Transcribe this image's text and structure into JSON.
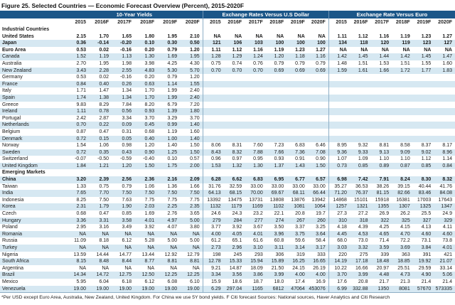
{
  "title": "Figure 25. Selected Countries — Economic Forecast Overview (Percent), 2015-2020F",
  "colors": {
    "header_bar": "#1b5688",
    "stripe": "#d6e8f2",
    "separator": "#8fafc6"
  },
  "groups": [
    {
      "label": "10-Year Yields"
    },
    {
      "label": "Exchange Rates Versus U.S Dollar"
    },
    {
      "label": "Exchange Rate Versus Euro"
    }
  ],
  "years": [
    "2015",
    "2016F",
    "2017F",
    "2018F",
    "2019F",
    "2020F"
  ],
  "sections": [
    {
      "label": "Industrial Countries",
      "rows": [
        {
          "country": "United States",
          "bold": true,
          "yields": [
            "2.15",
            "1.70",
            "1.65",
            "1.80",
            "1.95",
            "2.10"
          ],
          "usd": [
            "NA",
            "NA",
            "NA",
            "NA",
            "NA",
            "NA"
          ],
          "euro": [
            "1.11",
            "1.12",
            "1.16",
            "1.19",
            "1.23",
            "1.27"
          ]
        },
        {
          "country": "Japan",
          "bold": true,
          "yields": [
            "0.36",
            "-0.14",
            "-0.20",
            "0.10",
            "0.30",
            "0.50"
          ],
          "usd": [
            "121",
            "106",
            "103",
            "100",
            "100",
            "100"
          ],
          "euro": [
            "134",
            "118",
            "120",
            "119",
            "123",
            "127"
          ]
        },
        {
          "country": "Euro Area",
          "bold": true,
          "yields": [
            "0.53",
            "0.02",
            "-0.16",
            "0.20",
            "0.79",
            "1.20"
          ],
          "usd": [
            "1.11",
            "1.12",
            "1.16",
            "1.19",
            "1.23",
            "1.27"
          ],
          "euro": [
            "NA",
            "NA",
            "NA",
            "NA",
            "NA",
            "NA"
          ]
        },
        {
          "country": "Canada",
          "yields": [
            "1.52",
            "1.19",
            "1.13",
            "1.30",
            "1.69",
            "1.95"
          ],
          "usd": [
            "1.28",
            "1.29",
            "1.24",
            "1.20",
            "1.18",
            "1.16"
          ],
          "euro": [
            "1.42",
            "1.45",
            "1.44",
            "1.42",
            "1.45",
            "1.47"
          ]
        },
        {
          "country": "Australia",
          "yields": [
            "2.70",
            "1.95",
            "1.98",
            "3.98",
            "4.25",
            "4.30"
          ],
          "usd": [
            "0.75",
            "0.74",
            "0.76",
            "0.79",
            "0.79",
            "0.79"
          ],
          "euro": [
            "1.48",
            "1.51",
            "1.53",
            "1.51",
            "1.55",
            "1.60"
          ]
        },
        {
          "country": "New Zealand",
          "yields": [
            "3.43",
            "2.28",
            "2.55",
            "4.83",
            "5.30",
            "5.70"
          ],
          "usd": [
            "0.70",
            "0.70",
            "0.70",
            "0.69",
            "0.69",
            "0.69"
          ],
          "euro": [
            "1.59",
            "1.61",
            "1.66",
            "1.72",
            "1.77",
            "1.83"
          ]
        },
        {
          "country": "Germany",
          "yields": [
            "0.53",
            "0.02",
            "-0.16",
            "0.20",
            "0.79",
            "1.20"
          ],
          "usd": [],
          "euro": []
        },
        {
          "country": "France",
          "yields": [
            "0.84",
            "0.40",
            "0.26",
            "0.63",
            "1.14",
            "1.55"
          ],
          "usd": [],
          "euro": []
        },
        {
          "country": "Italy",
          "yields": [
            "1.71",
            "1.47",
            "1.34",
            "1.70",
            "1.99",
            "2.40"
          ],
          "usd": [],
          "euro": []
        },
        {
          "country": "Spain",
          "yields": [
            "1.74",
            "1.38",
            "1.34",
            "1.70",
            "1.99",
            "2.40"
          ],
          "usd": [],
          "euro": []
        },
        {
          "country": "Greece",
          "yields": [
            "9.83",
            "8.29",
            "7.84",
            "8.20",
            "6.79",
            "7.20"
          ],
          "usd": [],
          "euro": []
        },
        {
          "country": "Ireland",
          "yields": [
            "1.11",
            "0.78",
            "0.56",
            "0.93",
            "1.39",
            "1.80"
          ],
          "usd": [],
          "euro": []
        },
        {
          "country": "Portugal",
          "yields": [
            "2.42",
            "2.87",
            "3.34",
            "3.70",
            "3.29",
            "3.70"
          ],
          "usd": [],
          "euro": []
        },
        {
          "country": "Netherlands",
          "yields": [
            "0.70",
            "0.22",
            "0.09",
            "0.45",
            "0.99",
            "1.40"
          ],
          "usd": [],
          "euro": []
        },
        {
          "country": "Belgium",
          "yields": [
            "0.87",
            "0.47",
            "0.31",
            "0.68",
            "1.19",
            "1.60"
          ],
          "usd": [],
          "euro": []
        },
        {
          "country": "Denmark",
          "yields": [
            "0.72",
            "0.15",
            "0.05",
            "0.40",
            "1.00",
            "1.40"
          ],
          "usd": [],
          "euro": []
        },
        {
          "country": "Norway",
          "yields": [
            "1.54",
            "1.06",
            "0.98",
            "1.20",
            "1.40",
            "1.50"
          ],
          "usd": [
            "8.06",
            "8.31",
            "7.60",
            "7.23",
            "6.83",
            "6.46"
          ],
          "euro": [
            "8.95",
            "9.32",
            "8.81",
            "8.58",
            "8.37",
            "8.17"
          ]
        },
        {
          "country": "Sweden",
          "yields": [
            "0.72",
            "0.35",
            "0.43",
            "0.90",
            "1.25",
            "1.50"
          ],
          "usd": [
            "8.43",
            "8.32",
            "7.88",
            "7.66",
            "7.36",
            "7.08"
          ],
          "euro": [
            "9.36",
            "9.33",
            "9.13",
            "9.09",
            "9.02",
            "8.96"
          ]
        },
        {
          "country": "Switzerland",
          "yields": [
            "-0.07",
            "-0.50",
            "-0.59",
            "-0.40",
            "0.10",
            "0.57"
          ],
          "usd": [
            "0.96",
            "0.97",
            "0.95",
            "0.93",
            "0.91",
            "0.90"
          ],
          "euro": [
            "1.07",
            "1.09",
            "1.10",
            "1.10",
            "1.12",
            "1.14"
          ]
        },
        {
          "country": "United Kingdom",
          "yields": [
            "1.84",
            "1.21",
            "1.20",
            "1.50",
            "1.75",
            "2.00"
          ],
          "usd": [
            "1.53",
            "1.32",
            "1.30",
            "1.37",
            "1.43",
            "1.50"
          ],
          "euro": [
            "0.73",
            "0.85",
            "0.89",
            "0.87",
            "0.85",
            "0.84"
          ]
        }
      ]
    },
    {
      "label": "Emerging Markets",
      "rows": [
        {
          "country": "China",
          "bold": true,
          "yields": [
            "3.20",
            "2.39",
            "2.56",
            "2.36",
            "2.16",
            "2.09"
          ],
          "usd": [
            "6.28",
            "6.62",
            "6.83",
            "6.95",
            "6.77",
            "6.57"
          ],
          "euro": [
            "6.98",
            "7.42",
            "7.91",
            "8.24",
            "8.30",
            "8.32"
          ]
        },
        {
          "country": "Taiwan",
          "yields": [
            "1.33",
            "0.75",
            "0.79",
            "1.06",
            "1.36",
            "1.66"
          ],
          "usd": [
            "31.76",
            "32.59",
            "33.00",
            "33.00",
            "33.00",
            "33.00"
          ],
          "euro": [
            "35.27",
            "36.53",
            "38.26",
            "39.15",
            "40.44",
            "41.76"
          ]
        },
        {
          "country": "India",
          "yields": [
            "7.65",
            "7.70",
            "7.50",
            "7.50",
            "7.50",
            "7.50"
          ],
          "usd": [
            "64.13",
            "68.15",
            "70.00",
            "69.67",
            "68.11",
            "66.44"
          ],
          "euro": [
            "71.20",
            "76.37",
            "81.15",
            "82.66",
            "83.46",
            "84.08"
          ]
        },
        {
          "country": "Indonesia",
          "yields": [
            "8.25",
            "7.50",
            "7.63",
            "7.75",
            "7.75",
            "7.75"
          ],
          "usd": [
            "13392",
            "13475",
            "13731",
            "13808",
            "13876",
            "13942"
          ],
          "euro": [
            "14868",
            "15101",
            "15918",
            "16381",
            "17003",
            "17643"
          ]
        },
        {
          "country": "Korea",
          "yields": [
            "2.31",
            "1.79",
            "1.90",
            "2.03",
            "2.25",
            "2.35"
          ],
          "usd": [
            "1132",
            "1179",
            "1169",
            "1102",
            "1081",
            "1064"
          ],
          "euro": [
            "1257",
            "1321",
            "1355",
            "1307",
            "1325",
            "1347"
          ]
        },
        {
          "country": "Czech",
          "yields": [
            "0.68",
            "0.47",
            "0.85",
            "1.69",
            "2.76",
            "3.65"
          ],
          "usd": [
            "24.6",
            "24.3",
            "23.2",
            "22.1",
            "20.8",
            "19.7"
          ],
          "euro": [
            "27.3",
            "27.2",
            "26.9",
            "26.2",
            "25.5",
            "24.9"
          ]
        },
        {
          "country": "Hungary",
          "yields": [
            "3.36",
            "3.31",
            "3.58",
            "4.01",
            "4.97",
            "5.00"
          ],
          "usd": [
            "279",
            "284",
            "277",
            "274",
            "267",
            "260"
          ],
          "euro": [
            "310",
            "318",
            "322",
            "325",
            "327",
            "329"
          ]
        },
        {
          "country": "Poland",
          "yields": [
            "2.95",
            "3.16",
            "3.49",
            "3.92",
            "4.07",
            "3.80"
          ],
          "usd": [
            "3.77",
            "3.92",
            "3.67",
            "3.50",
            "3.37",
            "3.25"
          ],
          "euro": [
            "4.18",
            "4.39",
            "4.25",
            "4.15",
            "4.13",
            "4.11"
          ]
        },
        {
          "country": "Romania",
          "yields": [
            "NA",
            "NA",
            "NA",
            "NA",
            "NA",
            "NA"
          ],
          "usd": [
            "4.00",
            "4.05",
            "4.01",
            "3.96",
            "3.75",
            "3.64"
          ],
          "euro": [
            "4.45",
            "4.53",
            "4.65",
            "4.70",
            "4.60",
            "4.60"
          ]
        },
        {
          "country": "Russia",
          "yields": [
            "11.09",
            "8.18",
            "6.12",
            "5.28",
            "5.00",
            "5.00"
          ],
          "usd": [
            "61.2",
            "65.1",
            "61.6",
            "60.8",
            "59.6",
            "58.4"
          ],
          "euro": [
            "68.0",
            "73.0",
            "71.4",
            "72.2",
            "73.1",
            "73.8"
          ]
        },
        {
          "country": "Turkey",
          "yields": [
            "NA",
            "NA",
            "NA",
            "NA",
            "NA",
            "NA"
          ],
          "usd": [
            "2.73",
            "2.96",
            "3.10",
            "3.11",
            "3.14",
            "3.17"
          ],
          "euro": [
            "3.03",
            "3.32",
            "3.59",
            "3.69",
            "3.84",
            "4.01"
          ]
        },
        {
          "country": "Nigeria",
          "yields": [
            "13.59",
            "14.44",
            "14.77",
            "13.44",
            "12.92",
            "12.79"
          ],
          "usd": [
            "198",
            "245",
            "293",
            "306",
            "319",
            "333"
          ],
          "euro": [
            "220",
            "275",
            "339",
            "363",
            "391",
            "421"
          ]
        },
        {
          "country": "South Africa",
          "yields": [
            "8.15",
            "8.48",
            "8.44",
            "8.77",
            "8.81",
            "8.81"
          ],
          "usd": [
            "12.78",
            "15.33",
            "15.94",
            "15.89",
            "16.25",
            "16.65"
          ],
          "euro": [
            "14.19",
            "17.18",
            "18.48",
            "18.85",
            "19.92",
            "21.07"
          ]
        },
        {
          "country": "Argentina",
          "yields": [
            "NA",
            "NA",
            "NA",
            "NA",
            "NA",
            "NA"
          ],
          "usd": [
            "9.21",
            "14.87",
            "18.09",
            "21.50",
            "24.15",
            "26.19"
          ],
          "euro": [
            "10.22",
            "16.66",
            "20.97",
            "25.51",
            "29.59",
            "33.14"
          ]
        },
        {
          "country": "Brazil",
          "yields": [
            "14.34",
            "14.72",
            "12.75",
            "12.50",
            "12.25",
            "12.25"
          ],
          "usd": [
            "3.34",
            "3.56",
            "3.86",
            "3.99",
            "4.00",
            "4.00"
          ],
          "euro": [
            "3.70",
            "3.99",
            "4.48",
            "4.73",
            "4.90",
            "5.06"
          ]
        },
        {
          "country": "Mexico",
          "yields": [
            "5.95",
            "6.04",
            "6.18",
            "6.12",
            "6.08",
            "6.10"
          ],
          "usd": [
            "15.9",
            "18.6",
            "18.7",
            "18.0",
            "17.4",
            "16.9"
          ],
          "euro": [
            "17.6",
            "20.8",
            "21.7",
            "21.3",
            "21.4",
            "21.4"
          ]
        },
        {
          "country": "Venezuela",
          "yields": [
            "19.00",
            "19.00",
            "19.00",
            "19.00",
            "19.00",
            "19.00"
          ],
          "usd": [
            "6.29",
            "297.04",
            "1165",
            "6812",
            "47064",
            "453076"
          ],
          "euro": [
            "6.99",
            "332.88",
            "1350",
            "8081",
            "57670",
            "573335"
          ]
        }
      ]
    }
  ],
  "footnote": "*Per USD except Euro Area, Australia, New Zealand, United Kingdom. For China we use 5Y bond yields. F Citi forecast  Sources: National sources, Haver Analytics and Citi Research"
}
